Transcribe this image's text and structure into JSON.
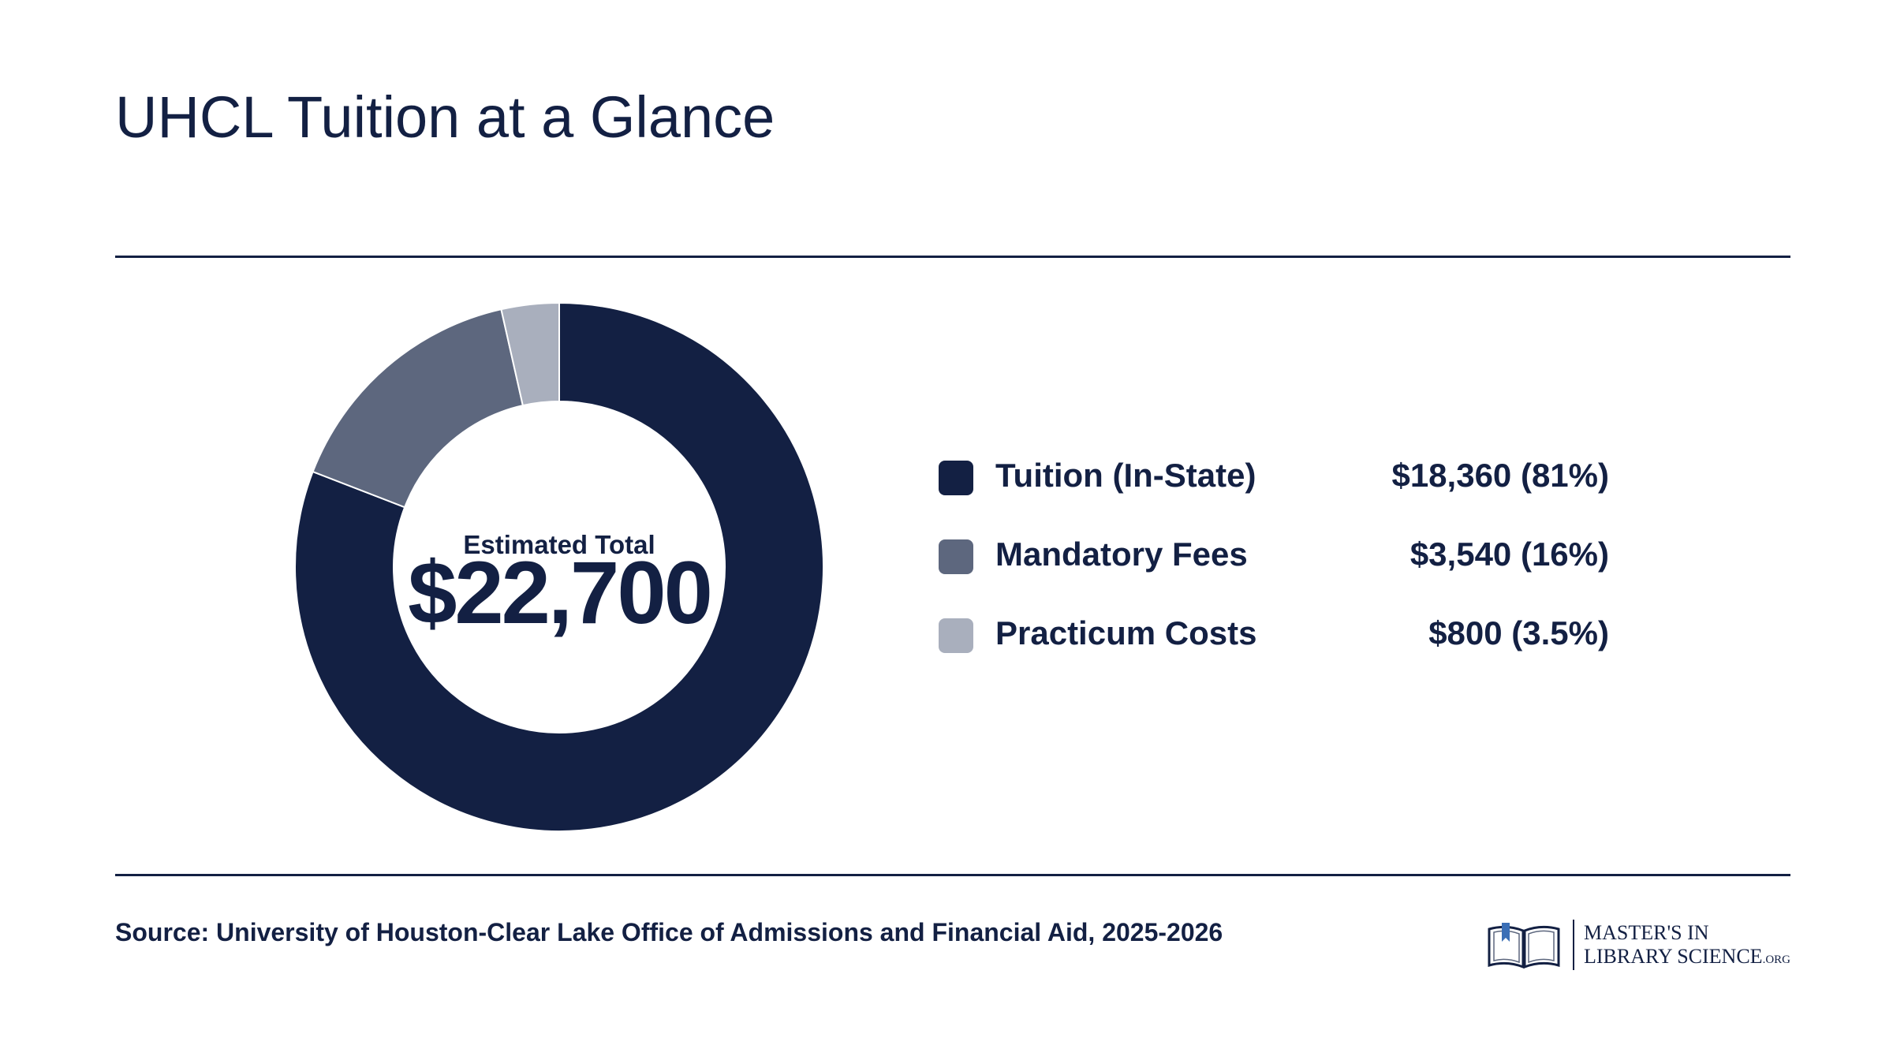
{
  "title": "UHCL Tuition at a Glance",
  "center": {
    "label": "Estimated Total",
    "value": "$22,700"
  },
  "legend": [
    {
      "name": "Tuition (In-State)",
      "value": "$18,360 (81%)"
    },
    {
      "name": "Mandatory Fees",
      "value": "$3,540 (16%)"
    },
    {
      "name": "Practicum Costs",
      "value": "$800 (3.5%)"
    }
  ],
  "source": "Source: University of Houston-Clear Lake Office of Admissions and Financial Aid, 2025-2026",
  "logo": {
    "line1": "MASTER'S IN",
    "line2": "LIBRARY SCIENCE",
    "line2_suffix": ".ORG"
  },
  "colors": {
    "navy": "#132043",
    "slate": "#5d677e",
    "light": "#a9afbd",
    "text": "#132043"
  },
  "chart_data": {
    "type": "pie",
    "title": "UHCL Tuition at a Glance",
    "categories": [
      "Tuition (In-State)",
      "Mandatory Fees",
      "Practicum Costs"
    ],
    "values": [
      18360,
      3540,
      800
    ],
    "percent_labels": [
      "81%",
      "16%",
      "3.5%"
    ],
    "colors": [
      "#132043",
      "#5d677e",
      "#a9afbd"
    ],
    "donut": true,
    "legend_position": "right"
  }
}
